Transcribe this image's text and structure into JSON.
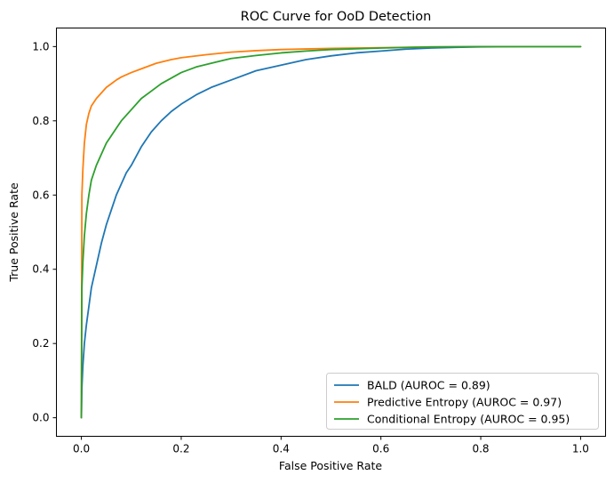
{
  "chart_data": {
    "type": "line",
    "title": "ROC Curve for OoD Detection",
    "xlabel": "False Positive Rate",
    "ylabel": "True Positive Rate",
    "xlim": [
      -0.05,
      1.05
    ],
    "ylim": [
      -0.05,
      1.05
    ],
    "xticks": [
      0.0,
      0.2,
      0.4,
      0.6,
      0.8,
      1.0
    ],
    "yticks": [
      0.0,
      0.2,
      0.4,
      0.6,
      0.8,
      1.0
    ],
    "xtick_labels": [
      "0.0",
      "0.2",
      "0.4",
      "0.6",
      "0.8",
      "1.0"
    ],
    "ytick_labels": [
      "0.0",
      "0.2",
      "0.4",
      "0.6",
      "0.8",
      "1.0"
    ],
    "grid": false,
    "legend_position": "lower-right",
    "series": [
      {
        "name": "BALD (AUROC = 0.89)",
        "color": "#1f77b4",
        "x": [
          0.0,
          0.001,
          0.003,
          0.006,
          0.01,
          0.015,
          0.02,
          0.03,
          0.04,
          0.05,
          0.06,
          0.07,
          0.08,
          0.09,
          0.1,
          0.12,
          0.14,
          0.16,
          0.18,
          0.2,
          0.23,
          0.26,
          0.3,
          0.35,
          0.4,
          0.45,
          0.5,
          0.55,
          0.6,
          0.65,
          0.7,
          0.75,
          0.8,
          0.9,
          1.0
        ],
        "y": [
          0.0,
          0.08,
          0.14,
          0.2,
          0.25,
          0.3,
          0.35,
          0.41,
          0.47,
          0.52,
          0.56,
          0.6,
          0.63,
          0.66,
          0.68,
          0.73,
          0.77,
          0.8,
          0.825,
          0.845,
          0.87,
          0.89,
          0.91,
          0.935,
          0.95,
          0.965,
          0.975,
          0.983,
          0.988,
          0.993,
          0.996,
          0.998,
          0.999,
          1.0,
          1.0
        ]
      },
      {
        "name": "Predictive Entropy (AUROC = 0.97)",
        "color": "#ff7f0e",
        "x": [
          0.0,
          0.001,
          0.003,
          0.006,
          0.01,
          0.015,
          0.02,
          0.03,
          0.04,
          0.05,
          0.06,
          0.07,
          0.08,
          0.1,
          0.12,
          0.15,
          0.18,
          0.2,
          0.25,
          0.3,
          0.35,
          0.4,
          0.5,
          0.6,
          0.7,
          0.8,
          1.0
        ],
        "y": [
          0.0,
          0.6,
          0.67,
          0.74,
          0.79,
          0.82,
          0.84,
          0.86,
          0.875,
          0.89,
          0.9,
          0.91,
          0.918,
          0.93,
          0.94,
          0.955,
          0.965,
          0.97,
          0.978,
          0.985,
          0.989,
          0.992,
          0.995,
          0.997,
          0.999,
          1.0,
          1.0
        ]
      },
      {
        "name": "Conditional Entropy (AUROC = 0.95)",
        "color": "#2ca02c",
        "x": [
          0.0,
          0.001,
          0.003,
          0.006,
          0.01,
          0.015,
          0.02,
          0.03,
          0.04,
          0.05,
          0.06,
          0.07,
          0.08,
          0.1,
          0.12,
          0.14,
          0.16,
          0.18,
          0.2,
          0.23,
          0.26,
          0.3,
          0.35,
          0.4,
          0.45,
          0.5,
          0.6,
          0.7,
          0.8,
          1.0
        ],
        "y": [
          0.0,
          0.35,
          0.42,
          0.49,
          0.55,
          0.6,
          0.64,
          0.68,
          0.71,
          0.74,
          0.76,
          0.78,
          0.8,
          0.83,
          0.86,
          0.88,
          0.9,
          0.915,
          0.93,
          0.945,
          0.955,
          0.968,
          0.976,
          0.983,
          0.988,
          0.992,
          0.996,
          0.999,
          1.0,
          1.0
        ]
      }
    ]
  }
}
